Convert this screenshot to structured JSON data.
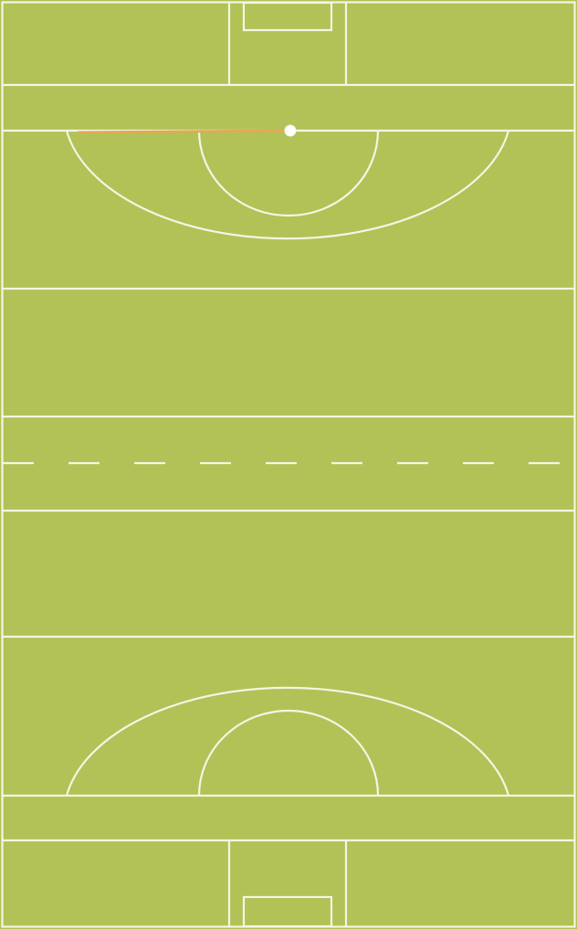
{
  "pitch": {
    "surface_color": "#b2c257",
    "line_color": "#f3f6e4",
    "marker_color": "#e0aa55",
    "ball_color": "#ffffff",
    "half_line_style": "dashed"
  }
}
